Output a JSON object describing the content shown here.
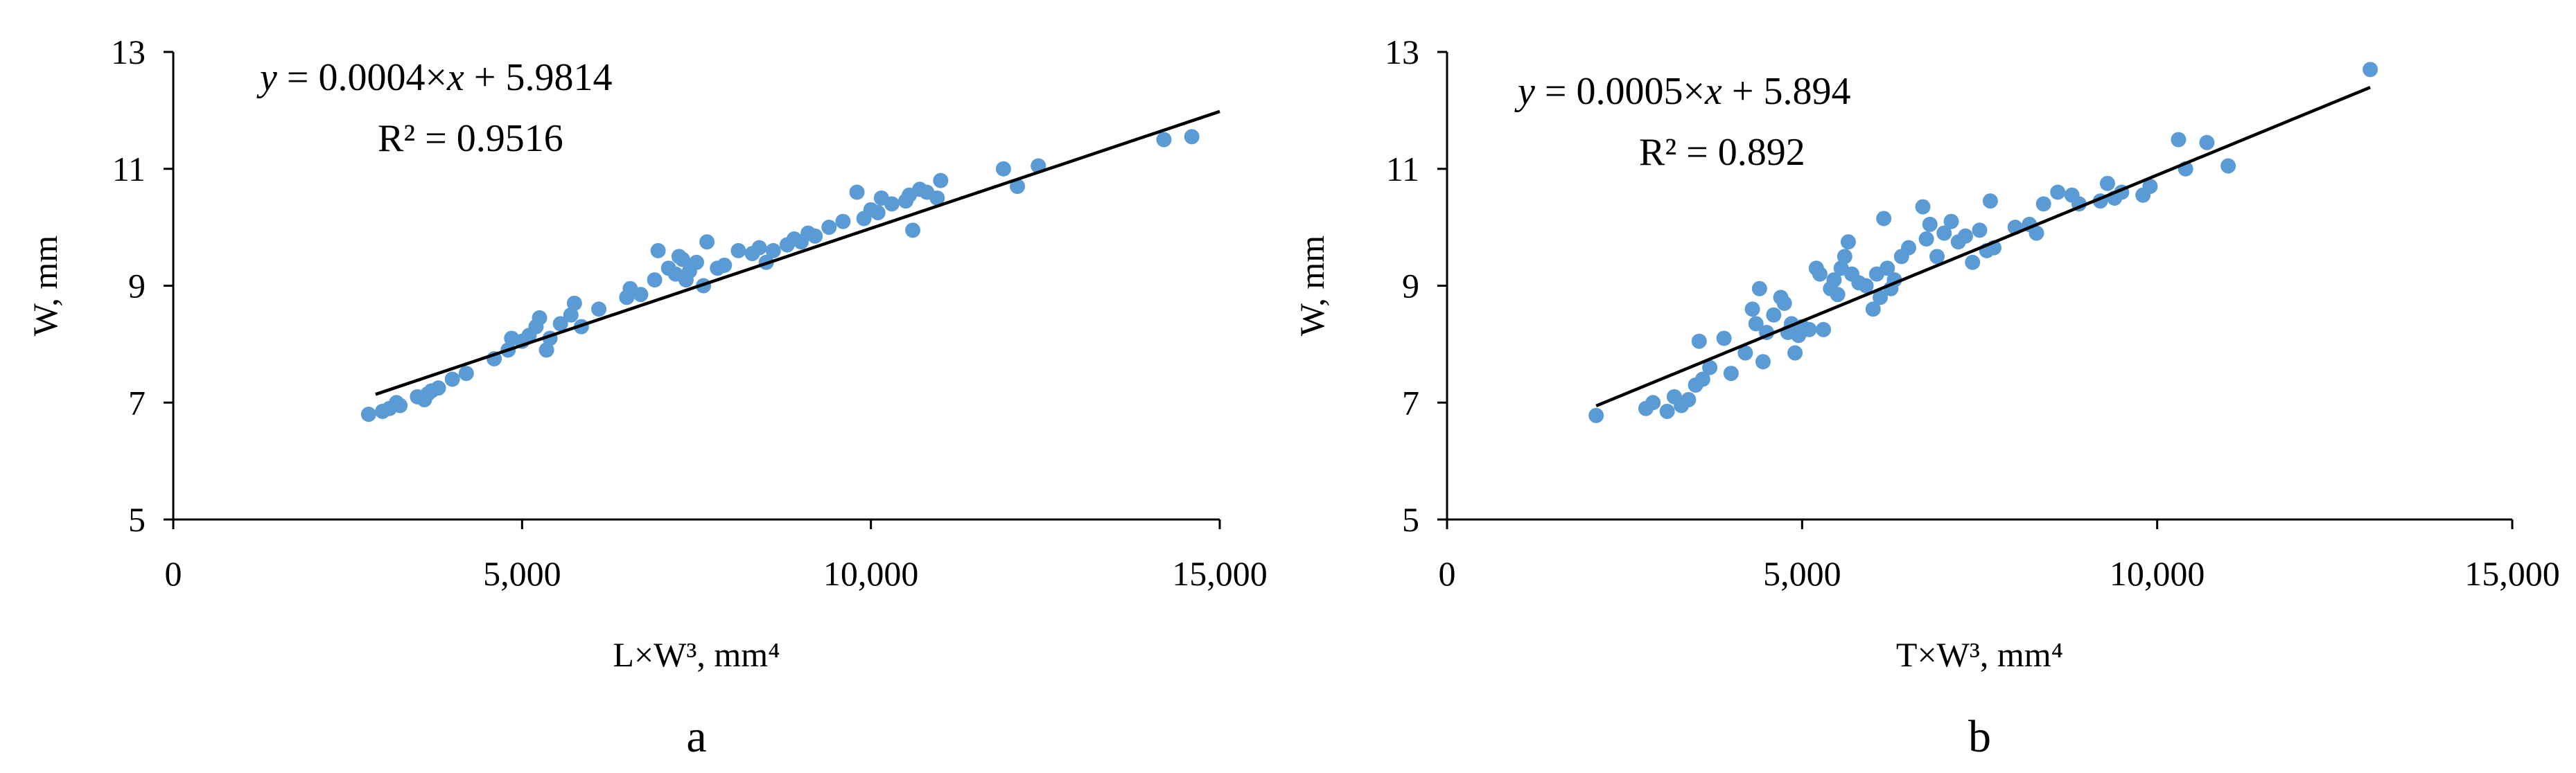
{
  "colors": {
    "point": "#5B9BD5",
    "line": "#000000",
    "axis": "#000000"
  },
  "chart_data": [
    {
      "type": "scatter",
      "panel_label": "a",
      "xlabel": "L×W³, mm⁴",
      "ylabel": "W, mm",
      "xlim": [
        0,
        15000
      ],
      "ylim": [
        5,
        13
      ],
      "x_ticks": [
        0,
        5000,
        10000,
        15000
      ],
      "x_tick_labels": [
        "0",
        "5,000",
        "10,000",
        "15,000"
      ],
      "y_ticks": [
        5,
        7,
        9,
        11,
        13
      ],
      "y_tick_labels": [
        "5",
        "7",
        "9",
        "11",
        "13"
      ],
      "grid": false,
      "trendline": {
        "slope": 0.0004,
        "intercept": 5.9814,
        "x_range": [
          2900,
          15000
        ]
      },
      "equation": {
        "y_var": "y",
        "middle": " = 0.0004×",
        "x_var": "x",
        "tail": " + 5.9814",
        "r2": "R² = 0.9516"
      },
      "points": [
        [
          2800,
          6.8
        ],
        [
          3000,
          6.85
        ],
        [
          3100,
          6.9
        ],
        [
          3200,
          7.0
        ],
        [
          3250,
          6.95
        ],
        [
          3500,
          7.1
        ],
        [
          3600,
          7.05
        ],
        [
          3650,
          7.15
        ],
        [
          3700,
          7.2
        ],
        [
          3800,
          7.25
        ],
        [
          4000,
          7.4
        ],
        [
          4200,
          7.5
        ],
        [
          4600,
          7.75
        ],
        [
          4800,
          7.9
        ],
        [
          4850,
          8.1
        ],
        [
          5000,
          8.05
        ],
        [
          5100,
          8.15
        ],
        [
          5200,
          8.3
        ],
        [
          5250,
          8.45
        ],
        [
          5350,
          7.9
        ],
        [
          5400,
          8.1
        ],
        [
          5550,
          8.35
        ],
        [
          5700,
          8.5
        ],
        [
          5750,
          8.7
        ],
        [
          5850,
          8.3
        ],
        [
          6100,
          8.6
        ],
        [
          6500,
          8.8
        ],
        [
          6550,
          8.95
        ],
        [
          6700,
          8.85
        ],
        [
          6900,
          9.1
        ],
        [
          6950,
          9.6
        ],
        [
          7100,
          9.3
        ],
        [
          7200,
          9.2
        ],
        [
          7250,
          9.5
        ],
        [
          7300,
          9.45
        ],
        [
          7350,
          9.1
        ],
        [
          7400,
          9.25
        ],
        [
          7500,
          9.4
        ],
        [
          7600,
          9.0
        ],
        [
          7650,
          9.75
        ],
        [
          7800,
          9.3
        ],
        [
          7900,
          9.35
        ],
        [
          8100,
          9.6
        ],
        [
          8300,
          9.55
        ],
        [
          8400,
          9.65
        ],
        [
          8500,
          9.4
        ],
        [
          8600,
          9.6
        ],
        [
          8800,
          9.7
        ],
        [
          8900,
          9.8
        ],
        [
          9000,
          9.75
        ],
        [
          9100,
          9.9
        ],
        [
          9200,
          9.85
        ],
        [
          9400,
          10.0
        ],
        [
          9600,
          10.1
        ],
        [
          9800,
          10.6
        ],
        [
          9900,
          10.15
        ],
        [
          10000,
          10.3
        ],
        [
          10100,
          10.25
        ],
        [
          10150,
          10.5
        ],
        [
          10300,
          10.4
        ],
        [
          10500,
          10.45
        ],
        [
          10550,
          10.55
        ],
        [
          10600,
          9.95
        ],
        [
          10700,
          10.65
        ],
        [
          10800,
          10.6
        ],
        [
          10950,
          10.5
        ],
        [
          11000,
          10.8
        ],
        [
          11900,
          11.0
        ],
        [
          12100,
          10.7
        ],
        [
          12400,
          11.05
        ],
        [
          14200,
          11.5
        ],
        [
          14600,
          11.55
        ]
      ]
    },
    {
      "type": "scatter",
      "panel_label": "b",
      "xlabel": "T×W³, mm⁴",
      "ylabel": "W, mm",
      "xlim": [
        0,
        15000
      ],
      "ylim": [
        5,
        13
      ],
      "x_ticks": [
        0,
        5000,
        10000,
        15000
      ],
      "x_tick_labels": [
        "0",
        "5,000",
        "10,000",
        "15,000"
      ],
      "y_ticks": [
        5,
        7,
        9,
        11,
        13
      ],
      "y_tick_labels": [
        "5",
        "7",
        "9",
        "11",
        "13"
      ],
      "grid": false,
      "trendline": {
        "slope": 0.0005,
        "intercept": 5.894,
        "x_range": [
          2100,
          13000
        ]
      },
      "equation": {
        "y_var": "y",
        "middle": " = 0.0005×",
        "x_var": "x",
        "tail": " + 5.894",
        "r2": "R² = 0.892"
      },
      "points": [
        [
          2100,
          6.78
        ],
        [
          2800,
          6.9
        ],
        [
          2900,
          7.0
        ],
        [
          3100,
          6.85
        ],
        [
          3200,
          7.1
        ],
        [
          3300,
          6.95
        ],
        [
          3400,
          7.05
        ],
        [
          3500,
          7.3
        ],
        [
          3550,
          8.05
        ],
        [
          3600,
          7.4
        ],
        [
          3700,
          7.6
        ],
        [
          3900,
          8.1
        ],
        [
          4000,
          7.5
        ],
        [
          4200,
          7.85
        ],
        [
          4300,
          8.6
        ],
        [
          4350,
          8.35
        ],
        [
          4400,
          8.95
        ],
        [
          4450,
          7.7
        ],
        [
          4500,
          8.2
        ],
        [
          4600,
          8.5
        ],
        [
          4700,
          8.8
        ],
        [
          4750,
          8.7
        ],
        [
          4800,
          8.2
        ],
        [
          4850,
          8.35
        ],
        [
          4900,
          7.85
        ],
        [
          4950,
          8.15
        ],
        [
          5000,
          8.3
        ],
        [
          5100,
          8.25
        ],
        [
          5200,
          9.3
        ],
        [
          5250,
          9.2
        ],
        [
          5300,
          8.25
        ],
        [
          5400,
          8.95
        ],
        [
          5450,
          9.1
        ],
        [
          5500,
          8.85
        ],
        [
          5550,
          9.3
        ],
        [
          5600,
          9.5
        ],
        [
          5650,
          9.75
        ],
        [
          5700,
          9.2
        ],
        [
          5800,
          9.05
        ],
        [
          5900,
          9.0
        ],
        [
          6000,
          8.6
        ],
        [
          6050,
          9.2
        ],
        [
          6100,
          8.8
        ],
        [
          6150,
          10.15
        ],
        [
          6200,
          9.3
        ],
        [
          6250,
          8.95
        ],
        [
          6300,
          9.1
        ],
        [
          6400,
          9.5
        ],
        [
          6500,
          9.65
        ],
        [
          6700,
          10.35
        ],
        [
          6750,
          9.8
        ],
        [
          6800,
          10.05
        ],
        [
          6900,
          9.5
        ],
        [
          7000,
          9.9
        ],
        [
          7100,
          10.1
        ],
        [
          7200,
          9.75
        ],
        [
          7300,
          9.85
        ],
        [
          7400,
          9.4
        ],
        [
          7500,
          9.95
        ],
        [
          7600,
          9.6
        ],
        [
          7650,
          10.45
        ],
        [
          7700,
          9.65
        ],
        [
          8000,
          10.0
        ],
        [
          8200,
          10.05
        ],
        [
          8300,
          9.9
        ],
        [
          8400,
          10.4
        ],
        [
          8600,
          10.6
        ],
        [
          8800,
          10.55
        ],
        [
          8900,
          10.4
        ],
        [
          9200,
          10.45
        ],
        [
          9300,
          10.75
        ],
        [
          9400,
          10.5
        ],
        [
          9500,
          10.6
        ],
        [
          9800,
          10.55
        ],
        [
          9900,
          10.7
        ],
        [
          10300,
          11.5
        ],
        [
          10400,
          11.0
        ],
        [
          10700,
          11.45
        ],
        [
          11000,
          11.05
        ],
        [
          13000,
          12.7
        ]
      ]
    }
  ]
}
